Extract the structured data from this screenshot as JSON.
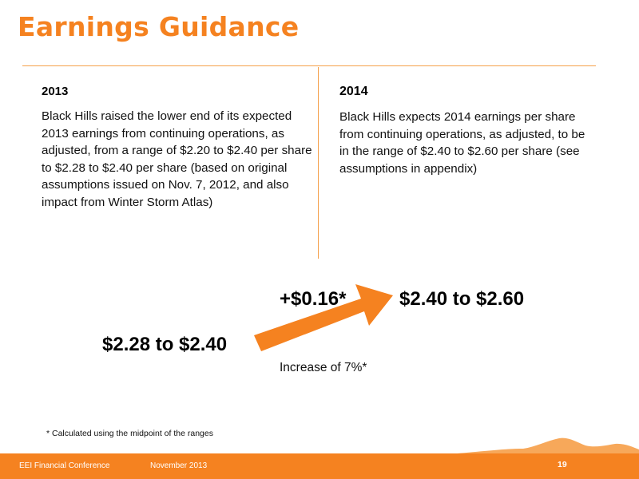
{
  "slide": {
    "title": "Earnings Guidance",
    "left": {
      "year": "2013",
      "text": "Black Hills raised the lower end of its expected 2013 earnings from continuing operations, as adjusted, from a range of $2.20 to $2.40 per share to $2.28 to $2.40 per share (based on original assumptions issued on Nov. 7, 2012, and also impact from Winter Storm Atlas)"
    },
    "right": {
      "year": "2014",
      "text": "Black Hills expects 2014 earnings per share from continuing operations, as adjusted, to be in the range of $2.40 to $2.60 per share (see assumptions in appendix)"
    },
    "graphic": {
      "from_range": "$2.28 to $2.40",
      "to_range": "$2.40 to $2.60",
      "delta": "+$0.16*",
      "increase": "Increase of  7%*"
    },
    "footnote": "* Calculated using the midpoint of the ranges",
    "footer": {
      "conference": "EEI Financial Conference",
      "date": "November 2013",
      "page": "19"
    },
    "colors": {
      "accent": "#f58220",
      "rule": "#f5a04a",
      "band_light": "#f7a85a"
    }
  }
}
